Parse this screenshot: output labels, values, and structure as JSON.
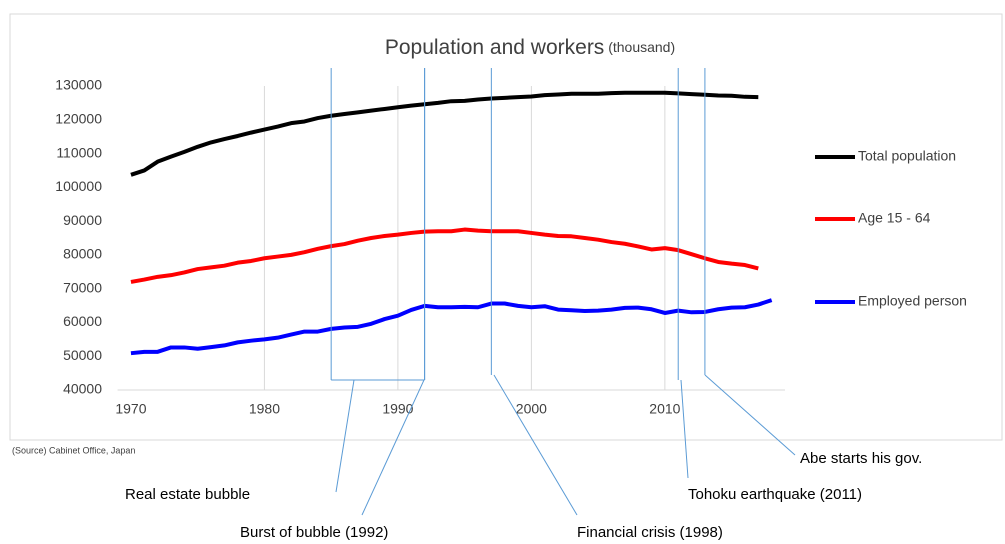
{
  "chart_data": {
    "type": "line",
    "title": "Population and workers",
    "unit": "(thousand)",
    "source": "(Source) Cabinet Office, Japan",
    "x": [
      1970,
      1971,
      1972,
      1973,
      1974,
      1975,
      1976,
      1977,
      1978,
      1979,
      1980,
      1981,
      1982,
      1983,
      1984,
      1985,
      1986,
      1987,
      1988,
      1989,
      1990,
      1991,
      1992,
      1993,
      1994,
      1995,
      1996,
      1997,
      1998,
      1999,
      2000,
      2001,
      2002,
      2003,
      2004,
      2005,
      2006,
      2007,
      2008,
      2009,
      2010,
      2011,
      2012,
      2013,
      2014,
      2015,
      2016,
      2017,
      2018
    ],
    "series": [
      {
        "name": "Total population",
        "color": "#000000",
        "values": [
          103700,
          105000,
          107600,
          109100,
          110500,
          112000,
          113300,
          114300,
          115200,
          116200,
          117100,
          118000,
          119000,
          119500,
          120500,
          121200,
          121700,
          122200,
          122700,
          123200,
          123700,
          124200,
          124600,
          125000,
          125500,
          125600,
          126000,
          126300,
          126500,
          126700,
          126900,
          127300,
          127500,
          127700,
          127700,
          127700,
          127900,
          128000,
          128000,
          128000,
          128000,
          127800,
          127600,
          127400,
          127200,
          127100,
          126800,
          126700,
          null
        ]
      },
      {
        "name": "Age 15 - 64",
        "color": "#ff0000",
        "values": [
          72000,
          72700,
          73500,
          74000,
          74800,
          75800,
          76300,
          76800,
          77700,
          78200,
          79000,
          79500,
          80000,
          80800,
          81800,
          82600,
          83200,
          84200,
          85000,
          85600,
          86000,
          86500,
          86900,
          87000,
          87000,
          87500,
          87200,
          87000,
          87000,
          87000,
          86500,
          86000,
          85600,
          85500,
          85000,
          84500,
          83800,
          83300,
          82500,
          81600,
          82000,
          81400,
          80200,
          79000,
          77900,
          77400,
          77000,
          76000,
          null
        ]
      },
      {
        "name": "Employed person",
        "color": "#0000ff",
        "values": [
          50900,
          51300,
          51300,
          52600,
          52600,
          52200,
          52700,
          53200,
          54100,
          54600,
          55000,
          55500,
          56400,
          57300,
          57300,
          58100,
          58500,
          58700,
          59600,
          61000,
          62000,
          63700,
          64900,
          64500,
          64500,
          64600,
          64500,
          65600,
          65600,
          64900,
          64500,
          64800,
          63800,
          63600,
          63400,
          63500,
          63800,
          64300,
          64400,
          63900,
          62800,
          63500,
          63000,
          63100,
          63900,
          64400,
          64500,
          65300,
          66600
        ]
      }
    ],
    "xlim": [
      1969,
      2019
    ],
    "ylim": [
      40000,
      130000
    ],
    "xticks": [
      1970,
      1980,
      1990,
      2000,
      2010
    ],
    "yticks": [
      40000,
      50000,
      60000,
      70000,
      80000,
      90000,
      100000,
      110000,
      120000,
      130000
    ],
    "grid": "x",
    "legend": "right",
    "annotations": [
      {
        "text": "Real estate bubble",
        "x": 1985,
        "x_end": 1992
      },
      {
        "text": "Burst of bubble (1992)",
        "x": 1992
      },
      {
        "text": "Financial crisis (1998)",
        "x": 1997
      },
      {
        "text": "Tohoku earthquake (2011)",
        "x": 2011
      },
      {
        "text": "Abe starts his gov.",
        "x": 2013
      }
    ]
  }
}
